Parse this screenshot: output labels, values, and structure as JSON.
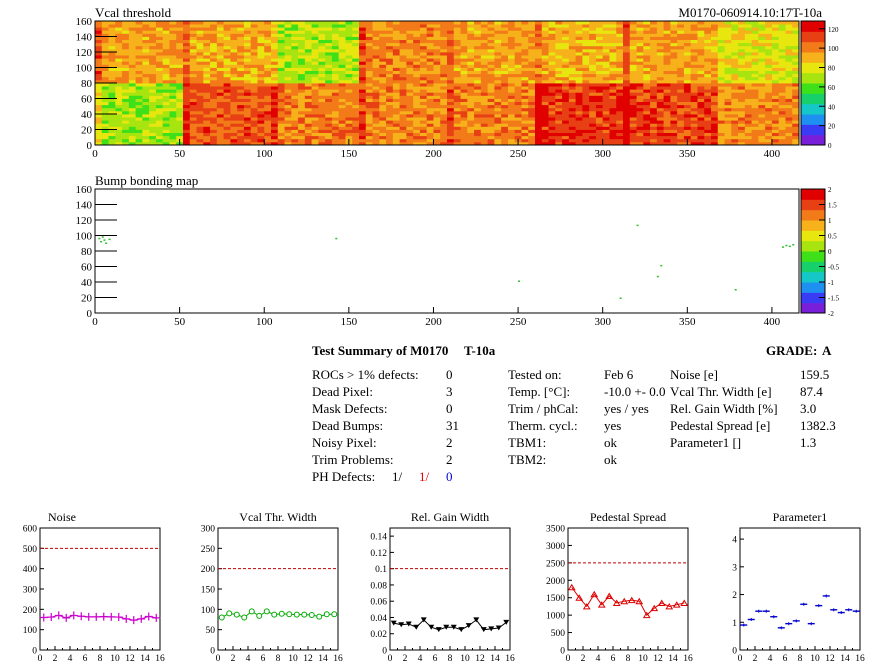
{
  "header": {
    "module_id": "M0170-060914.10:17T-10a"
  },
  "maps": [
    {
      "title": "Vcal threshold",
      "x_ticks": [
        "0",
        "50",
        "100",
        "150",
        "200",
        "250",
        "300",
        "350",
        "400"
      ],
      "y_ticks": [
        "0",
        "20",
        "40",
        "60",
        "80",
        "100",
        "120",
        "140",
        "160"
      ],
      "palette_ticks": [
        "0",
        "20",
        "40",
        "60",
        "80",
        "100",
        "120"
      ]
    },
    {
      "title": "Bump bonding map",
      "x_ticks": [
        "0",
        "50",
        "100",
        "150",
        "200",
        "250",
        "300",
        "350",
        "400"
      ],
      "y_ticks": [
        "0",
        "20",
        "40",
        "60",
        "80",
        "100",
        "120",
        "140",
        "160"
      ],
      "palette_ticks": [
        "-2",
        "-1.5",
        "-1",
        "-0.5",
        "0",
        "0.5",
        "1",
        "1.5",
        "2"
      ]
    }
  ],
  "summary": {
    "title": "Test Summary of M0170",
    "test_type": "T-10a",
    "grade_label": "GRADE:",
    "grade_value": "A",
    "left": [
      {
        "label": "ROCs > 1% defects:",
        "value": "0"
      },
      {
        "label": "Dead Pixel:",
        "value": "3"
      },
      {
        "label": "Mask Defects:",
        "value": "0"
      },
      {
        "label": "Dead Bumps:",
        "value": "31"
      },
      {
        "label": "Noisy Pixel:",
        "value": "2"
      },
      {
        "label": "Trim Problems:",
        "value": "2"
      }
    ],
    "ph_defects": {
      "label": "PH Defects:",
      "v1": "1/",
      "v2": "1/",
      "v3": "0",
      "c1": "#000000",
      "c2": "#e00000",
      "c3": "#0000e0"
    },
    "middle": [
      {
        "label": "Tested on:",
        "value": "Feb 6"
      },
      {
        "label": "Temp. [°C]:",
        "value": "-10.0 +- 0.0"
      },
      {
        "label": "Trim / phCal:",
        "value": "yes / yes"
      },
      {
        "label": "Therm. cycl.:",
        "value": "yes"
      },
      {
        "label": "TBM1:",
        "value": "ok"
      },
      {
        "label": "TBM2:",
        "value": "ok"
      }
    ],
    "right": [
      {
        "label": "Noise [e]",
        "value": "159.5"
      },
      {
        "label": "Vcal Thr. Width [e]",
        "value": "87.4"
      },
      {
        "label": "Rel. Gain Width [%]",
        "value": "3.0"
      },
      {
        "label": "Pedestal Spread [e]",
        "value": "1382.3"
      },
      {
        "label": "Parameter1 []",
        "value": "1.3"
      }
    ]
  },
  "chart_data": [
    {
      "type": "heatmap",
      "title": "Vcal threshold",
      "xlim": [
        0,
        416
      ],
      "ylim": [
        0,
        160
      ],
      "zlim": [
        0,
        128
      ],
      "note_values": "per-ROC block mean threshold, 8 columns x 2 rows",
      "blocks_top": [
        95,
        92,
        72,
        98,
        94,
        90,
        93,
        80
      ],
      "blocks_bottom": [
        70,
        108,
        102,
        100,
        100,
        115,
        112,
        98
      ],
      "color": [
        "#7a1fd9",
        "#3a3cf5",
        "#1e90f0",
        "#15c7c7",
        "#17d06a",
        "#3ee01a",
        "#a7e410",
        "#e8e60f",
        "#f6b11b",
        "#f27a18",
        "#e84015",
        "#e00000"
      ]
    },
    {
      "type": "heatmap",
      "title": "Bump bonding map",
      "xlim": [
        0,
        416
      ],
      "ylim": [
        0,
        160
      ],
      "zlim": [
        -2,
        2
      ],
      "points": [
        [
          2,
          97
        ],
        [
          4,
          99
        ],
        [
          5,
          95
        ],
        [
          3,
          93
        ],
        [
          8,
          96
        ],
        [
          6,
          91
        ],
        [
          142,
          97
        ],
        [
          250,
          42
        ],
        [
          320,
          114
        ],
        [
          334,
          62
        ],
        [
          310,
          20
        ],
        [
          332,
          48
        ],
        [
          378,
          31
        ],
        [
          408,
          88
        ],
        [
          410,
          87
        ],
        [
          412,
          89
        ],
        [
          406,
          86
        ]
      ]
    },
    {
      "type": "line",
      "title": "Noise",
      "x": [
        0,
        1,
        2,
        3,
        4,
        5,
        6,
        7,
        8,
        9,
        10,
        11,
        12,
        13,
        14,
        15
      ],
      "values": [
        160,
        162,
        170,
        158,
        170,
        166,
        163,
        163,
        164,
        163,
        162,
        153,
        147,
        153,
        165,
        158
      ],
      "ylim": [
        0,
        600
      ],
      "xlim": [
        0,
        16
      ],
      "threshold": 500,
      "y_ticks": [
        "0",
        "100",
        "200",
        "300",
        "400",
        "500",
        "600"
      ],
      "x_ticks": [
        "0",
        "2",
        "4",
        "6",
        "8",
        "10",
        "12",
        "14",
        "16"
      ],
      "marker": "cross",
      "color": "#cc00cc"
    },
    {
      "type": "line",
      "title": "Vcal Thr. Width",
      "x": [
        0,
        1,
        2,
        3,
        4,
        5,
        6,
        7,
        8,
        9,
        10,
        11,
        12,
        13,
        14,
        15
      ],
      "values": [
        80,
        90,
        87,
        80,
        95,
        84,
        95,
        87,
        89,
        88,
        87,
        87,
        86,
        82,
        88,
        88
      ],
      "ylim": [
        0,
        300
      ],
      "xlim": [
        0,
        16
      ],
      "threshold": 200,
      "y_ticks": [
        "0",
        "50",
        "100",
        "150",
        "200",
        "250",
        "300"
      ],
      "x_ticks": [
        "0",
        "2",
        "4",
        "6",
        "8",
        "10",
        "12",
        "14",
        "16"
      ],
      "marker": "circle",
      "color": "#00aa00"
    },
    {
      "type": "line",
      "title": "Rel. Gain Width",
      "x": [
        0,
        1,
        2,
        3,
        4,
        5,
        6,
        7,
        8,
        9,
        10,
        11,
        12,
        13,
        14,
        15
      ],
      "values": [
        0.033,
        0.031,
        0.032,
        0.028,
        0.037,
        0.028,
        0.025,
        0.028,
        0.028,
        0.025,
        0.03,
        0.037,
        0.025,
        0.026,
        0.027,
        0.034
      ],
      "ylim": [
        0,
        0.15
      ],
      "xlim": [
        0,
        16
      ],
      "threshold": 0.1,
      "y_ticks": [
        "0",
        "0.02",
        "0.04",
        "0.06",
        "0.08",
        "0.1",
        "0.12",
        "0.14"
      ],
      "x_ticks": [
        "0",
        "2",
        "4",
        "6",
        "8",
        "10",
        "12",
        "14",
        "16"
      ],
      "marker": "triangle-down",
      "color": "#000000"
    },
    {
      "type": "line",
      "title": "Pedestal Spread",
      "x": [
        0,
        1,
        2,
        3,
        4,
        5,
        6,
        7,
        8,
        9,
        10,
        11,
        12,
        13,
        14,
        15
      ],
      "values": [
        1800,
        1500,
        1250,
        1600,
        1300,
        1550,
        1350,
        1400,
        1430,
        1400,
        1000,
        1200,
        1350,
        1250,
        1300,
        1350
      ],
      "ylim": [
        0,
        3500
      ],
      "xlim": [
        0,
        16
      ],
      "threshold": 2500,
      "y_ticks": [
        "0",
        "500",
        "1000",
        "1500",
        "2000",
        "2500",
        "3000",
        "3500"
      ],
      "x_ticks": [
        "0",
        "2",
        "4",
        "6",
        "8",
        "10",
        "12",
        "14",
        "16"
      ],
      "marker": "triangle-up",
      "color": "#dd0000"
    },
    {
      "type": "scatter",
      "title": "Parameter1",
      "x": [
        0,
        1,
        2,
        3,
        4,
        5,
        6,
        7,
        8,
        9,
        10,
        11,
        12,
        13,
        14,
        15
      ],
      "values": [
        0.9,
        1.1,
        1.4,
        1.4,
        1.2,
        0.8,
        0.95,
        1.05,
        1.65,
        0.95,
        1.6,
        1.95,
        1.45,
        1.35,
        1.45,
        1.4
      ],
      "ylim": [
        0,
        4.4
      ],
      "xlim": [
        0,
        16
      ],
      "y_ticks": [
        "0",
        "1",
        "2",
        "3",
        "4"
      ],
      "x_ticks": [
        "0",
        "2",
        "4",
        "6",
        "8",
        "10",
        "12",
        "14",
        "16"
      ],
      "marker": "hbar",
      "color": "#0000cc"
    }
  ]
}
